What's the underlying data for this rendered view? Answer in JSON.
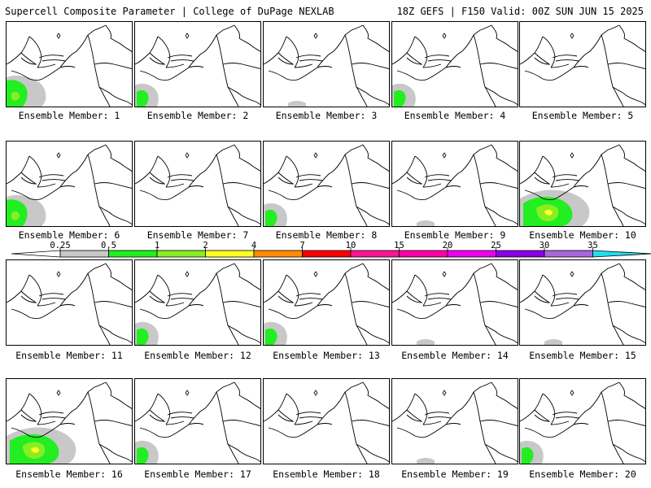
{
  "header": {
    "title_left": "Supercell Composite Parameter | College of DuPage NEXLAB",
    "title_right": "18Z GEFS | F150 Valid: 00Z SUN JUN 15 2025"
  },
  "caption_prefix": "Ensemble Member:",
  "members": [
    {
      "number": "1",
      "coverage": "moderate"
    },
    {
      "number": "2",
      "coverage": "light"
    },
    {
      "number": "3",
      "coverage": "trace"
    },
    {
      "number": "4",
      "coverage": "light"
    },
    {
      "number": "5",
      "coverage": "none"
    },
    {
      "number": "6",
      "coverage": "moderate"
    },
    {
      "number": "7",
      "coverage": "none"
    },
    {
      "number": "8",
      "coverage": "light"
    },
    {
      "number": "9",
      "coverage": "trace"
    },
    {
      "number": "10",
      "coverage": "strong"
    },
    {
      "number": "11",
      "coverage": "none"
    },
    {
      "number": "12",
      "coverage": "light"
    },
    {
      "number": "13",
      "coverage": "light"
    },
    {
      "number": "14",
      "coverage": "trace"
    },
    {
      "number": "15",
      "coverage": "trace"
    },
    {
      "number": "16",
      "coverage": "strong"
    },
    {
      "number": "17",
      "coverage": "light"
    },
    {
      "number": "18",
      "coverage": "none"
    },
    {
      "number": "19",
      "coverage": "trace"
    },
    {
      "number": "20",
      "coverage": "light"
    }
  ],
  "colorbar": {
    "labels": [
      "0.25",
      "0.5",
      "1",
      "2",
      "4",
      "7",
      "10",
      "15",
      "20",
      "25",
      "30",
      "35"
    ],
    "colors": [
      "#c8c8c8",
      "#22ee22",
      "#88ee22",
      "#ffff22",
      "#ff8c00",
      "#ff0000",
      "#ff1493",
      "#ff00aa",
      "#ee00ee",
      "#8a00e6",
      "#aa66dd",
      "#22ddee"
    ]
  }
}
